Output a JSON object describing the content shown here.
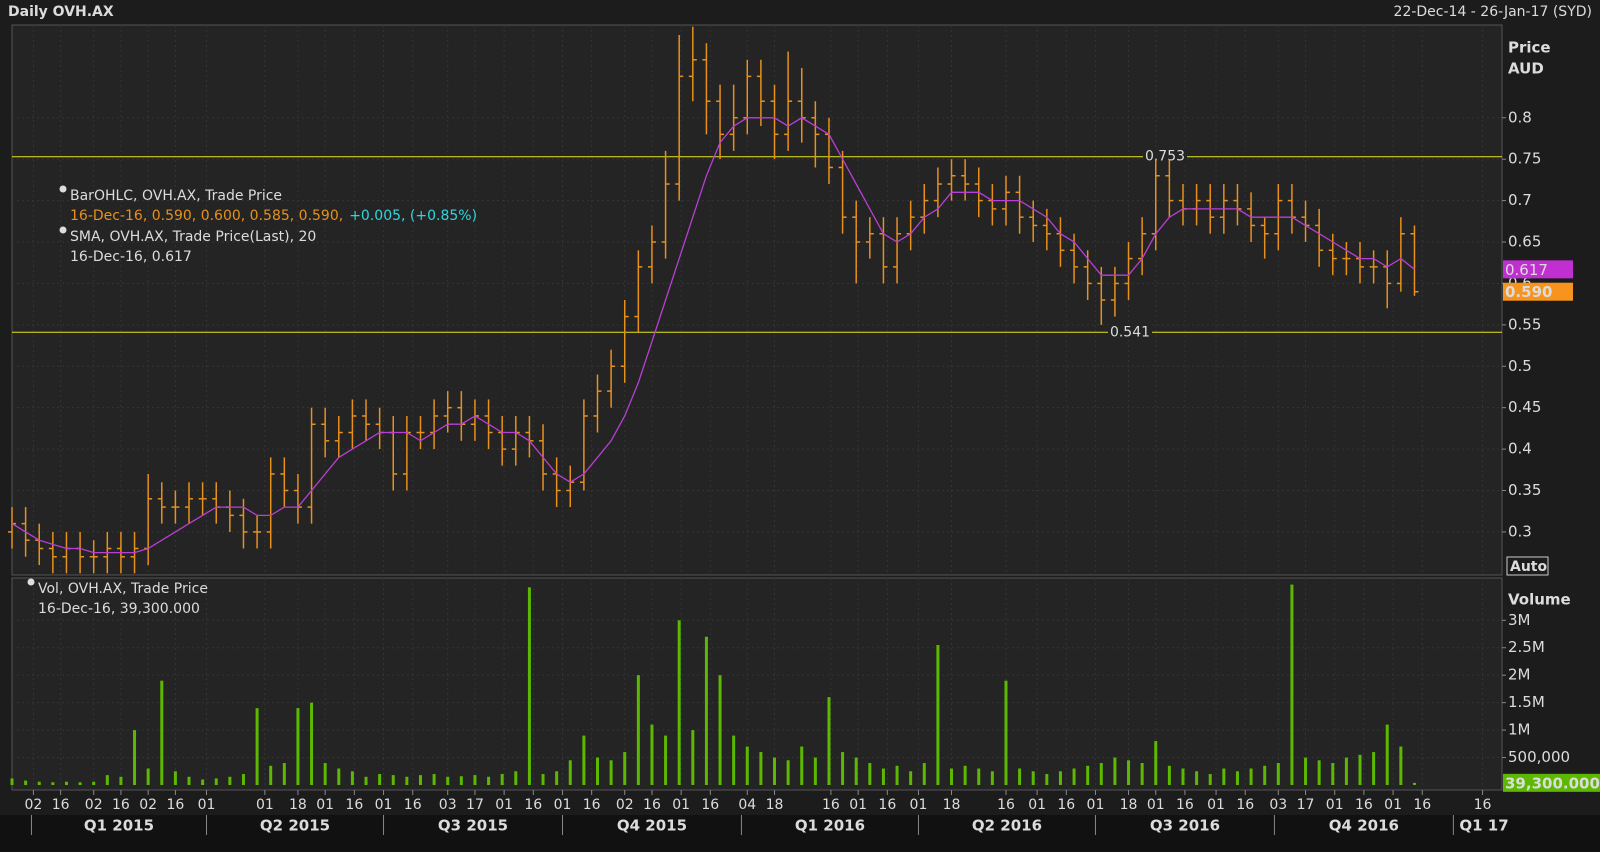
{
  "chart_data": {
    "type": "ohlc",
    "title": "Daily OVH.AX",
    "subtitle": "22-Dec-14 - 26-Jan-17 (SYD)",
    "y_label": "Price",
    "y_unit": "AUD",
    "scale_mode": "Auto",
    "x": [
      "2014-12-22",
      "2014-12-29",
      "2015-01-05",
      "2015-01-12",
      "2015-01-19",
      "2015-01-26",
      "2015-02-02",
      "2015-02-09",
      "2015-02-16",
      "2015-02-23",
      "2015-03-02",
      "2015-03-09",
      "2015-03-16",
      "2015-03-23",
      "2015-03-30",
      "2015-04-06",
      "2015-04-13",
      "2015-04-20",
      "2015-04-27",
      "2015-05-04",
      "2015-05-11",
      "2015-05-18",
      "2015-05-25",
      "2015-06-01",
      "2015-06-08",
      "2015-06-15",
      "2015-06-22",
      "2015-06-29",
      "2015-07-06",
      "2015-07-13",
      "2015-07-20",
      "2015-07-27",
      "2015-08-03",
      "2015-08-10",
      "2015-08-17",
      "2015-08-24",
      "2015-08-31",
      "2015-09-07",
      "2015-09-14",
      "2015-09-21",
      "2015-09-28",
      "2015-10-05",
      "2015-10-12",
      "2015-10-19",
      "2015-10-26",
      "2015-11-02",
      "2015-11-09",
      "2015-11-16",
      "2015-11-23",
      "2015-11-30",
      "2015-12-07",
      "2015-12-14",
      "2015-12-21",
      "2015-12-28",
      "2016-01-04",
      "2016-01-11",
      "2016-01-18",
      "2016-01-25",
      "2016-02-01",
      "2016-02-08",
      "2016-02-15",
      "2016-02-22",
      "2016-02-29",
      "2016-03-07",
      "2016-03-14",
      "2016-03-21",
      "2016-03-28",
      "2016-04-04",
      "2016-04-11",
      "2016-04-18",
      "2016-04-25",
      "2016-05-02",
      "2016-05-09",
      "2016-05-16",
      "2016-05-23",
      "2016-05-30",
      "2016-06-06",
      "2016-06-13",
      "2016-06-20",
      "2016-06-27",
      "2016-07-04",
      "2016-07-11",
      "2016-07-18",
      "2016-07-25",
      "2016-08-01",
      "2016-08-08",
      "2016-08-15",
      "2016-08-22",
      "2016-08-29",
      "2016-09-05",
      "2016-09-12",
      "2016-09-19",
      "2016-09-26",
      "2016-10-03",
      "2016-10-10",
      "2016-10-17",
      "2016-10-24",
      "2016-10-31",
      "2016-11-07",
      "2016-11-14",
      "2016-11-21",
      "2016-11-28",
      "2016-12-05",
      "2016-12-12"
    ],
    "open": [
      0.3,
      0.31,
      0.29,
      0.28,
      0.27,
      0.28,
      0.27,
      0.27,
      0.28,
      0.27,
      0.28,
      0.34,
      0.33,
      0.33,
      0.34,
      0.34,
      0.33,
      0.32,
      0.3,
      0.3,
      0.37,
      0.35,
      0.33,
      0.43,
      0.41,
      0.42,
      0.44,
      0.43,
      0.42,
      0.37,
      0.42,
      0.42,
      0.44,
      0.45,
      0.43,
      0.44,
      0.42,
      0.4,
      0.42,
      0.41,
      0.37,
      0.35,
      0.36,
      0.44,
      0.47,
      0.5,
      0.56,
      0.62,
      0.65,
      0.72,
      0.85,
      0.87,
      0.82,
      0.78,
      0.8,
      0.85,
      0.82,
      0.78,
      0.82,
      0.8,
      0.78,
      0.74,
      0.68,
      0.65,
      0.66,
      0.62,
      0.66,
      0.68,
      0.7,
      0.72,
      0.73,
      0.72,
      0.7,
      0.69,
      0.71,
      0.68,
      0.67,
      0.66,
      0.64,
      0.62,
      0.6,
      0.58,
      0.6,
      0.63,
      0.66,
      0.73,
      0.7,
      0.69,
      0.7,
      0.68,
      0.7,
      0.69,
      0.67,
      0.66,
      0.7,
      0.68,
      0.67,
      0.64,
      0.63,
      0.63,
      0.62,
      0.62,
      0.6,
      0.66
    ],
    "high": [
      0.33,
      0.33,
      0.31,
      0.3,
      0.3,
      0.3,
      0.29,
      0.3,
      0.3,
      0.3,
      0.37,
      0.36,
      0.35,
      0.36,
      0.36,
      0.36,
      0.35,
      0.34,
      0.32,
      0.39,
      0.39,
      0.37,
      0.45,
      0.45,
      0.44,
      0.46,
      0.46,
      0.45,
      0.44,
      0.44,
      0.44,
      0.46,
      0.47,
      0.47,
      0.46,
      0.46,
      0.44,
      0.44,
      0.44,
      0.43,
      0.39,
      0.38,
      0.46,
      0.49,
      0.52,
      0.58,
      0.64,
      0.67,
      0.76,
      0.9,
      0.91,
      0.89,
      0.84,
      0.84,
      0.87,
      0.87,
      0.84,
      0.88,
      0.86,
      0.82,
      0.8,
      0.76,
      0.7,
      0.68,
      0.68,
      0.68,
      0.7,
      0.72,
      0.74,
      0.75,
      0.75,
      0.74,
      0.72,
      0.73,
      0.73,
      0.7,
      0.69,
      0.68,
      0.66,
      0.64,
      0.62,
      0.62,
      0.65,
      0.68,
      0.75,
      0.75,
      0.72,
      0.72,
      0.72,
      0.72,
      0.72,
      0.71,
      0.68,
      0.72,
      0.72,
      0.7,
      0.69,
      0.66,
      0.65,
      0.65,
      0.64,
      0.64,
      0.68,
      0.67
    ],
    "low": [
      0.28,
      0.27,
      0.26,
      0.25,
      0.25,
      0.25,
      0.25,
      0.25,
      0.25,
      0.25,
      0.26,
      0.31,
      0.31,
      0.31,
      0.32,
      0.31,
      0.3,
      0.28,
      0.28,
      0.28,
      0.33,
      0.31,
      0.31,
      0.39,
      0.39,
      0.4,
      0.41,
      0.4,
      0.35,
      0.35,
      0.4,
      0.4,
      0.42,
      0.41,
      0.41,
      0.4,
      0.38,
      0.38,
      0.39,
      0.35,
      0.33,
      0.33,
      0.35,
      0.42,
      0.45,
      0.48,
      0.54,
      0.6,
      0.63,
      0.7,
      0.82,
      0.78,
      0.75,
      0.76,
      0.78,
      0.79,
      0.75,
      0.76,
      0.77,
      0.74,
      0.72,
      0.66,
      0.6,
      0.63,
      0.6,
      0.6,
      0.64,
      0.66,
      0.68,
      0.7,
      0.7,
      0.68,
      0.67,
      0.67,
      0.66,
      0.65,
      0.64,
      0.62,
      0.6,
      0.58,
      0.55,
      0.56,
      0.58,
      0.61,
      0.64,
      0.68,
      0.67,
      0.67,
      0.66,
      0.66,
      0.67,
      0.65,
      0.63,
      0.64,
      0.66,
      0.65,
      0.62,
      0.61,
      0.61,
      0.6,
      0.6,
      0.57,
      0.59,
      0.585
    ],
    "close": [
      0.31,
      0.29,
      0.28,
      0.27,
      0.28,
      0.27,
      0.27,
      0.28,
      0.27,
      0.28,
      0.34,
      0.33,
      0.33,
      0.34,
      0.34,
      0.33,
      0.32,
      0.3,
      0.3,
      0.37,
      0.35,
      0.33,
      0.43,
      0.41,
      0.42,
      0.44,
      0.43,
      0.42,
      0.37,
      0.42,
      0.42,
      0.44,
      0.45,
      0.43,
      0.44,
      0.42,
      0.4,
      0.42,
      0.41,
      0.37,
      0.35,
      0.36,
      0.44,
      0.47,
      0.5,
      0.56,
      0.62,
      0.65,
      0.72,
      0.85,
      0.87,
      0.82,
      0.78,
      0.8,
      0.85,
      0.82,
      0.78,
      0.82,
      0.8,
      0.78,
      0.74,
      0.68,
      0.65,
      0.66,
      0.62,
      0.66,
      0.68,
      0.7,
      0.72,
      0.73,
      0.72,
      0.7,
      0.69,
      0.71,
      0.68,
      0.67,
      0.66,
      0.64,
      0.62,
      0.6,
      0.58,
      0.6,
      0.63,
      0.66,
      0.73,
      0.7,
      0.69,
      0.7,
      0.68,
      0.7,
      0.69,
      0.67,
      0.66,
      0.7,
      0.68,
      0.67,
      0.64,
      0.63,
      0.63,
      0.62,
      0.62,
      0.6,
      0.66,
      0.59
    ],
    "color": "#e8901c",
    "sma": {
      "color": "#b93fd6",
      "values": [
        0.31,
        0.3,
        0.29,
        0.285,
        0.28,
        0.28,
        0.275,
        0.275,
        0.275,
        0.275,
        0.28,
        0.29,
        0.3,
        0.31,
        0.32,
        0.33,
        0.33,
        0.33,
        0.32,
        0.32,
        0.33,
        0.33,
        0.35,
        0.37,
        0.39,
        0.4,
        0.41,
        0.42,
        0.42,
        0.42,
        0.41,
        0.42,
        0.43,
        0.43,
        0.44,
        0.43,
        0.42,
        0.42,
        0.41,
        0.39,
        0.37,
        0.36,
        0.37,
        0.39,
        0.41,
        0.44,
        0.48,
        0.53,
        0.58,
        0.63,
        0.68,
        0.73,
        0.77,
        0.79,
        0.8,
        0.8,
        0.8,
        0.79,
        0.8,
        0.79,
        0.78,
        0.75,
        0.72,
        0.69,
        0.66,
        0.65,
        0.66,
        0.68,
        0.69,
        0.71,
        0.71,
        0.71,
        0.7,
        0.7,
        0.7,
        0.69,
        0.68,
        0.66,
        0.65,
        0.63,
        0.61,
        0.61,
        0.61,
        0.63,
        0.66,
        0.68,
        0.69,
        0.69,
        0.69,
        0.69,
        0.69,
        0.68,
        0.68,
        0.68,
        0.68,
        0.67,
        0.66,
        0.65,
        0.64,
        0.63,
        0.63,
        0.62,
        0.63,
        0.617
      ]
    },
    "legend": [
      {
        "name": "BarOHLC, OVH.AX, Trade Price",
        "detail": "16-Dec-16, 0.590, 0.600, 0.585, 0.590,",
        "change": "+0.005, (+0.85%)"
      },
      {
        "name": "SMA, OVH.AX, Trade Price(Last),  20",
        "detail": "16-Dec-16, 0.617"
      }
    ],
    "xlim": [
      "2014-12-22",
      "2017-01-26"
    ],
    "ylim": [
      0.248,
      0.912
    ],
    "yticks": [
      0.3,
      0.35,
      0.4,
      0.45,
      0.5,
      0.55,
      0.6,
      0.65,
      0.7,
      0.75,
      0.8
    ],
    "hlines": [
      {
        "value": 0.753,
        "label": "0.753"
      },
      {
        "value": 0.541,
        "label": "0.541"
      }
    ],
    "markers": [
      {
        "value": 0.617,
        "label": "0.617",
        "color": "#c030d0"
      },
      {
        "value": 0.59,
        "label": "0.590",
        "color": "#f7941d"
      }
    ],
    "grid": true,
    "xticks": [
      {
        "value": "2015-01-02",
        "label": "02"
      },
      {
        "value": "2015-01-16",
        "label": "16"
      },
      {
        "value": "2015-02-02",
        "label": "02"
      },
      {
        "value": "2015-02-16",
        "label": "16"
      },
      {
        "value": "2015-03-02",
        "label": "02"
      },
      {
        "value": "2015-03-16",
        "label": "16"
      },
      {
        "value": "2015-04-01",
        "label": "01"
      },
      {
        "value": "2015-05-01",
        "label": "01"
      },
      {
        "value": "2015-05-18",
        "label": "18"
      },
      {
        "value": "2015-06-01",
        "label": "01"
      },
      {
        "value": "2015-06-16",
        "label": "16"
      },
      {
        "value": "2015-07-01",
        "label": "01"
      },
      {
        "value": "2015-07-16",
        "label": "16"
      },
      {
        "value": "2015-08-03",
        "label": "03"
      },
      {
        "value": "2015-08-17",
        "label": "17"
      },
      {
        "value": "2015-09-01",
        "label": "01"
      },
      {
        "value": "2015-09-16",
        "label": "16"
      },
      {
        "value": "2015-10-01",
        "label": "01"
      },
      {
        "value": "2015-10-16",
        "label": "16"
      },
      {
        "value": "2015-11-02",
        "label": "02"
      },
      {
        "value": "2015-11-16",
        "label": "16"
      },
      {
        "value": "2015-12-01",
        "label": "01"
      },
      {
        "value": "2015-12-16",
        "label": "16"
      },
      {
        "value": "2016-01-04",
        "label": "04"
      },
      {
        "value": "2016-01-18",
        "label": "18"
      },
      {
        "value": "2016-02-16",
        "label": "16"
      },
      {
        "value": "2016-03-01",
        "label": "01"
      },
      {
        "value": "2016-03-16",
        "label": "16"
      },
      {
        "value": "2016-04-01",
        "label": "01"
      },
      {
        "value": "2016-04-18",
        "label": "18"
      },
      {
        "value": "2016-05-16",
        "label": "16"
      },
      {
        "value": "2016-06-01",
        "label": "01"
      },
      {
        "value": "2016-06-16",
        "label": "16"
      },
      {
        "value": "2016-07-01",
        "label": "01"
      },
      {
        "value": "2016-07-18",
        "label": "18"
      },
      {
        "value": "2016-08-01",
        "label": "01"
      },
      {
        "value": "2016-08-16",
        "label": "16"
      },
      {
        "value": "2016-09-01",
        "label": "01"
      },
      {
        "value": "2016-09-16",
        "label": "16"
      },
      {
        "value": "2016-10-03",
        "label": "03"
      },
      {
        "value": "2016-10-17",
        "label": "17"
      },
      {
        "value": "2016-11-01",
        "label": "01"
      },
      {
        "value": "2016-11-16",
        "label": "16"
      },
      {
        "value": "2016-12-01",
        "label": "01"
      },
      {
        "value": "2016-12-16",
        "label": "16"
      },
      {
        "value": "2017-01-16",
        "label": "16"
      }
    ],
    "quarters": [
      {
        "label": "Q1 2015",
        "start": "2015-01-01",
        "end": "2015-04-01"
      },
      {
        "label": "Q2 2015",
        "start": "2015-04-01",
        "end": "2015-07-01"
      },
      {
        "label": "Q3 2015",
        "start": "2015-07-01",
        "end": "2015-10-01"
      },
      {
        "label": "Q4 2015",
        "start": "2015-10-01",
        "end": "2016-01-01"
      },
      {
        "label": "Q1 2016",
        "start": "2016-01-01",
        "end": "2016-04-01"
      },
      {
        "label": "Q2 2016",
        "start": "2016-04-01",
        "end": "2016-07-01"
      },
      {
        "label": "Q3 2016",
        "start": "2016-07-01",
        "end": "2016-10-01"
      },
      {
        "label": "Q4 2016",
        "start": "2016-10-01",
        "end": "2017-01-01"
      },
      {
        "label": "Q1 17",
        "start": "2017-01-01"
      }
    ],
    "volume": {
      "label": "Volume",
      "color": "#5cb800",
      "legend": {
        "name": "Vol, OVH.AX, Trade Price",
        "detail": "16-Dec-16, 39,300.000"
      },
      "values": [
        120000,
        80000,
        60000,
        50000,
        60000,
        50000,
        60000,
        180000,
        150000,
        1000000,
        300000,
        1900000,
        250000,
        150000,
        100000,
        120000,
        150000,
        200000,
        1400000,
        350000,
        400000,
        1400000,
        1500000,
        400000,
        300000,
        250000,
        150000,
        200000,
        180000,
        150000,
        180000,
        200000,
        150000,
        160000,
        180000,
        150000,
        200000,
        250000,
        3600000,
        200000,
        250000,
        450000,
        900000,
        500000,
        450000,
        600000,
        2000000,
        1100000,
        900000,
        3000000,
        1000000,
        2700000,
        2000000,
        900000,
        700000,
        600000,
        500000,
        450000,
        700000,
        500000,
        1600000,
        600000,
        500000,
        400000,
        300000,
        350000,
        250000,
        400000,
        2550000,
        300000,
        350000,
        300000,
        250000,
        1900000,
        300000,
        250000,
        200000,
        250000,
        300000,
        350000,
        400000,
        500000,
        450000,
        400000,
        800000,
        350000,
        300000,
        250000,
        200000,
        300000,
        250000,
        300000,
        350000,
        400000,
        3650000,
        500000,
        450000,
        400000,
        500000,
        550000,
        600000,
        1100000,
        700000,
        39300
      ],
      "ylim": [
        0,
        3770000
      ],
      "yticks": [
        {
          "value": 500000,
          "label": "500,000"
        },
        {
          "value": 1000000,
          "label": "1M"
        },
        {
          "value": 1500000,
          "label": "1.5M"
        },
        {
          "value": 2000000,
          "label": "2M"
        },
        {
          "value": 2500000,
          "label": "2.5M"
        },
        {
          "value": 3000000,
          "label": "3M"
        }
      ],
      "marker": {
        "value": 39300,
        "label": "39,300.000",
        "color": "#5cb800"
      }
    }
  }
}
